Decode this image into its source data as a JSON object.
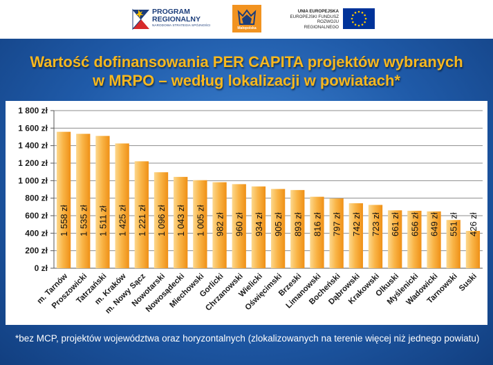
{
  "header": {
    "program_logo_line1": "PROGRAM",
    "program_logo_line2": "REGIONALNY",
    "program_logo_sub": "NARODOWA STRATEGIA SPÓJNOŚCI",
    "malopolska_logo_text": "Małopolska",
    "eu_line1": "UNIA EUROPEJSKA",
    "eu_line2": "EUROPEJSKI FUNDUSZ",
    "eu_line3": "ROZWOJU REGIONALNEGO"
  },
  "slide": {
    "title_line1": "Wartość  dofinansowania PER CAPITA projektów wybranych",
    "title_line2": "w MRPO – według lokalizacji w powiatach*",
    "footnote": "*bez MCP, projektów województwa oraz horyzontalnych (zlokalizowanych na terenie więcej niż jednego powiatu)"
  },
  "colors": {
    "title": "#f7b81f",
    "bar_light": "#fcd17a",
    "bar_dark": "#f39a1e",
    "background": "#1f5aa8"
  },
  "chart_data": {
    "type": "bar",
    "categories": [
      "m. Tarnów",
      "Proszowicki",
      "Tatrzański",
      "m. Kraków",
      "m. Nowy Sącz",
      "Nowotarski",
      "Nowosądecki",
      "Miechowski",
      "Gorlicki",
      "Chrzanowski",
      "Wielicki",
      "Oświęcimski",
      "Brzeski",
      "Limanowski",
      "Bocheński",
      "Dąbrowski",
      "Krakowski",
      "Olkuski",
      "Myślenicki",
      "Wadowicki",
      "Tarnowski",
      "Suski"
    ],
    "values": [
      1558,
      1535,
      1511,
      1425,
      1221,
      1096,
      1043,
      1005,
      982,
      960,
      934,
      905,
      893,
      816,
      797,
      742,
      723,
      661,
      656,
      649,
      551,
      426
    ],
    "data_labels": [
      "1 558 zł",
      "1 535 zł",
      "1 511 zł",
      "1 425 zł",
      "1 221 zł",
      "1 096 zł",
      "1 043 zł",
      "1 005 zł",
      "982 zł",
      "960 zł",
      "934 zł",
      "905 zł",
      "893 zł",
      "816 zł",
      "797 zł",
      "742 zł",
      "723 zł",
      "661 zł",
      "656 zł",
      "649 zł",
      "551 zł",
      "426 zł"
    ],
    "yticks": [
      0,
      200,
      400,
      600,
      800,
      1000,
      1200,
      1400,
      1600,
      1800
    ],
    "ytick_labels": [
      "0 zł",
      "200 zł",
      "400 zł",
      "600 zł",
      "800 zł",
      "1 000 zł",
      "1 200 zł",
      "1 400 zł",
      "1 600 zł",
      "1 800 zł"
    ],
    "ylim": [
      0,
      1800
    ],
    "grid": true,
    "legend": "none",
    "title": "",
    "xlabel": "",
    "ylabel": ""
  }
}
